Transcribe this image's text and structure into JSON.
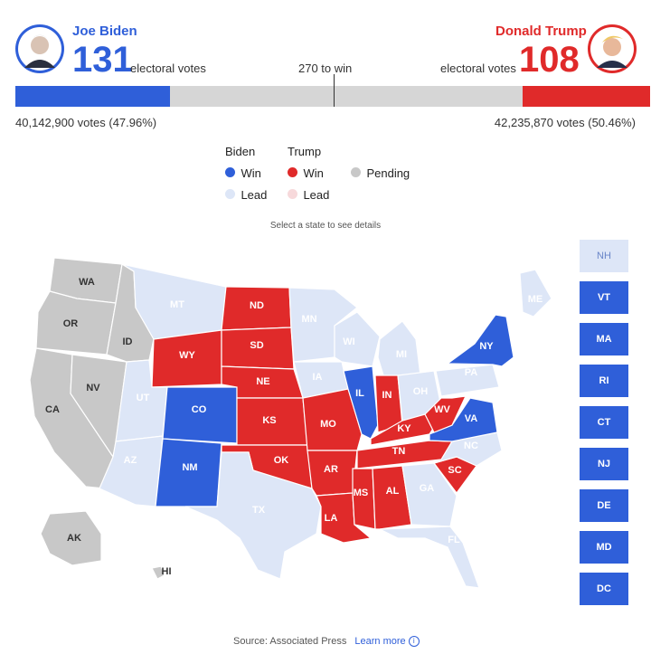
{
  "colors": {
    "biden_win": "#2f5fd9",
    "biden_lead": "#dde6f7",
    "trump_win": "#e02a2a",
    "trump_lead": "#f7d9db",
    "pending": "#c8c8c8"
  },
  "header": {
    "biden": {
      "name": "Joe Biden",
      "electoral": "131",
      "ev_label": "electoral votes",
      "popular": "40,142,900 votes (47.96%)"
    },
    "trump": {
      "name": "Donald Trump",
      "electoral": "108",
      "ev_label": "electoral votes",
      "popular": "42,235,870 votes (50.46%)"
    },
    "threshold_label": "270 to win"
  },
  "legend": {
    "biden_title": "Biden",
    "trump_title": "Trump",
    "win": "Win",
    "lead": "Lead",
    "pending": "Pending"
  },
  "hint": "Select a state to see details",
  "footer": {
    "source": "Source: Associated Press",
    "learn_more": "Learn more"
  },
  "chart_data": {
    "type": "bar",
    "title": "",
    "total_electoral_votes": 538,
    "threshold": 270,
    "series": [
      {
        "name": "Joe Biden",
        "values": [
          131
        ]
      },
      {
        "name": "Donald Trump",
        "values": [
          108
        ]
      }
    ],
    "states": {
      "biden_win": [
        "CO",
        "NM",
        "IL",
        "VA",
        "NY",
        "VT",
        "MA",
        "RI",
        "CT",
        "NJ",
        "DE",
        "MD",
        "DC"
      ],
      "biden_lead": [
        "WA",
        "OR",
        "CA",
        "NV",
        "ID",
        "MT",
        "MN",
        "WI",
        "MI",
        "IA",
        "PA",
        "OH",
        "AZ",
        "ME",
        "NH",
        "UT",
        "NC",
        "GA",
        "TX",
        "FL",
        "AK",
        "HI"
      ],
      "trump_win": [
        "ND",
        "SD",
        "WY",
        "NE",
        "KS",
        "OK",
        "MO",
        "AR",
        "LA",
        "MS",
        "AL",
        "TN",
        "KY",
        "IN",
        "WV",
        "SC"
      ]
    }
  },
  "state_labels": [
    "WA",
    "OR",
    "CA",
    "NV",
    "ID",
    "MT",
    "WY",
    "UT",
    "AZ",
    "CO",
    "NM",
    "ND",
    "SD",
    "NE",
    "KS",
    "OK",
    "TX",
    "MN",
    "IA",
    "MO",
    "AR",
    "LA",
    "WI",
    "IL",
    "MI",
    "IN",
    "OH",
    "KY",
    "TN",
    "MS",
    "AL",
    "GA",
    "FL",
    "SC",
    "NC",
    "VA",
    "WV",
    "PA",
    "NY",
    "ME",
    "AK",
    "HI"
  ],
  "side_boxes": [
    "NH",
    "VT",
    "MA",
    "RI",
    "CT",
    "NJ",
    "DE",
    "MD",
    "DC"
  ]
}
